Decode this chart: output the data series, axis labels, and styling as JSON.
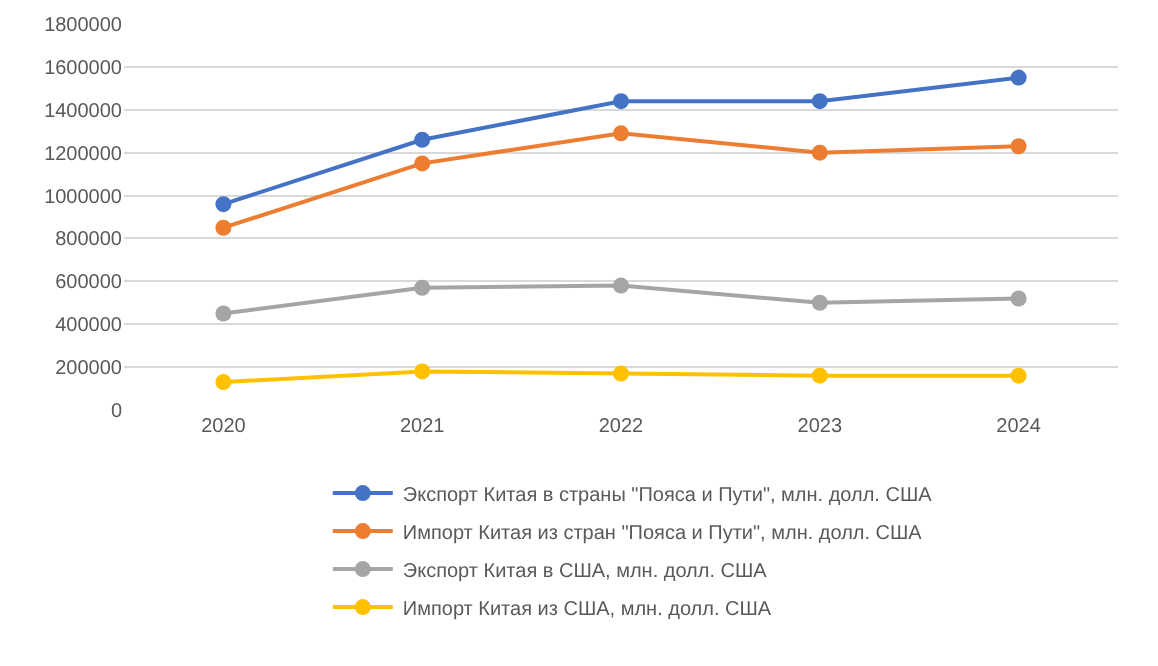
{
  "chart_data": {
    "type": "line",
    "categories": [
      "2020",
      "2021",
      "2022",
      "2023",
      "2024"
    ],
    "series": [
      {
        "name": "Экспорт Китая в страны \"Пояса и Пути\", млн. долл. США",
        "color": "#4472c4",
        "values": [
          960000,
          1260000,
          1440000,
          1440000,
          1550000
        ]
      },
      {
        "name": "Импорт Китая из стран \"Пояса и Пути\", млн. долл. США",
        "color": "#ed7d31",
        "values": [
          850000,
          1150000,
          1290000,
          1200000,
          1230000
        ]
      },
      {
        "name": "Экспорт Китая в США, млн. долл. США",
        "color": "#a5a5a5",
        "values": [
          450000,
          570000,
          580000,
          500000,
          520000
        ]
      },
      {
        "name": "Импорт Китая из США, млн. долл. США",
        "color": "#ffc000",
        "values": [
          130000,
          180000,
          170000,
          160000,
          160000
        ]
      }
    ],
    "ylim": [
      0,
      1800000
    ],
    "yticks": [
      0,
      200000,
      400000,
      600000,
      800000,
      1000000,
      1200000,
      1400000,
      1600000,
      1800000
    ],
    "grid": "y",
    "legend": "bottom",
    "marker": "circle",
    "line_style": "solid"
  }
}
